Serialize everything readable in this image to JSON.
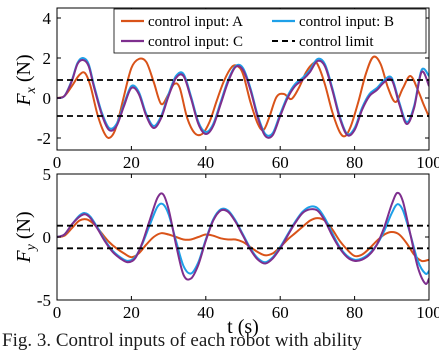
{
  "chart_data": [
    {
      "type": "line",
      "ylabel_main": "F",
      "ylabel_sub": "x",
      "ylabel_unit": " (N)",
      "xlim": [
        0,
        100
      ],
      "ylim": [
        -2.6,
        4.5
      ],
      "xticks": [
        0,
        20,
        40,
        60,
        80,
        100
      ],
      "yticks": [
        -2,
        0,
        2,
        4
      ],
      "grid": false,
      "legend_position": "top",
      "series": [
        {
          "name": "control input: A",
          "color": "#d95319",
          "style": "solid",
          "x": [
            0,
            2,
            4,
            6,
            7.5,
            9,
            11,
            13,
            14.5,
            16,
            18,
            20,
            22,
            24,
            26,
            28,
            30,
            31.5,
            33,
            35,
            37,
            39,
            41,
            43,
            45,
            47,
            48.5,
            50,
            52,
            54,
            55.5,
            57,
            59,
            61,
            63,
            65,
            67,
            69,
            70,
            72,
            74,
            76,
            77.5,
            79,
            81,
            83,
            85,
            87,
            89,
            91,
            93,
            95,
            97,
            98.5,
            100
          ],
          "y": [
            0,
            0.1,
            0.6,
            1.15,
            1.25,
            0.6,
            -0.9,
            -1.85,
            -1.95,
            -1.4,
            0.1,
            1.5,
            1.95,
            1.8,
            0.8,
            -0.3,
            0.2,
            0.7,
            0.5,
            -1.0,
            -1.75,
            -1.8,
            -1.2,
            -0.1,
            0.9,
            1.55,
            1.6,
            1.2,
            -0.2,
            -1.3,
            -1.6,
            -1.0,
            0.05,
            0.2,
            -0.05,
            0.5,
            1.3,
            1.75,
            1.7,
            0.7,
            -0.7,
            -1.7,
            -1.9,
            -1.4,
            -0.2,
            1.2,
            2.05,
            1.7,
            0.5,
            -0.2,
            0.5,
            1.1,
            0.4,
            -0.3,
            -0.95
          ]
        },
        {
          "name": "control input: B",
          "color": "#1ea0e8",
          "style": "solid",
          "x": [
            0,
            2,
            4,
            5.5,
            7,
            8.5,
            10,
            12,
            14,
            16,
            18,
            20,
            22,
            24,
            26,
            28,
            30,
            32,
            34,
            36,
            38,
            40,
            42,
            44,
            46,
            48,
            50,
            52,
            54,
            56,
            58,
            60,
            62,
            64,
            66,
            68,
            70,
            72,
            74,
            76,
            78,
            80,
            82,
            84,
            86,
            88,
            90,
            92,
            94,
            96,
            98,
            100
          ],
          "y": [
            0,
            0.1,
            0.9,
            1.75,
            2.0,
            1.7,
            0.6,
            -0.7,
            -1.5,
            -1.3,
            -0.3,
            0.6,
            0.3,
            -0.8,
            -1.4,
            -0.9,
            0.2,
            1.1,
            1.2,
            0.1,
            -1.2,
            -1.7,
            -1.3,
            -0.2,
            0.9,
            1.6,
            1.5,
            0.5,
            -0.9,
            -1.8,
            -1.75,
            -0.8,
            0.1,
            0.7,
            1.0,
            1.4,
            1.95,
            1.7,
            0.5,
            -0.9,
            -1.8,
            -1.5,
            -0.5,
            0.2,
            0.5,
            0.9,
            1.0,
            -0.2,
            -1.2,
            -0.4,
            1.4,
            1.1
          ]
        },
        {
          "name": "control input: C",
          "color": "#7e2f8e",
          "style": "solid",
          "x": [
            0,
            2,
            4,
            5.5,
            7,
            8.5,
            10,
            12,
            14,
            16,
            18,
            20,
            22,
            24,
            26,
            28,
            30,
            32,
            34,
            36,
            38,
            40,
            42,
            44,
            46,
            48,
            50,
            52,
            54,
            56,
            58,
            60,
            62,
            64,
            66,
            68,
            70,
            72,
            74,
            76,
            78,
            80,
            82,
            84,
            86,
            88,
            90,
            92,
            94,
            96,
            98,
            100
          ],
          "y": [
            0,
            0.1,
            0.85,
            1.7,
            1.9,
            1.6,
            0.5,
            -0.8,
            -1.6,
            -1.4,
            -0.4,
            0.5,
            0.2,
            -0.9,
            -1.5,
            -1.0,
            0.1,
            1.0,
            1.1,
            0.0,
            -1.3,
            -1.8,
            -1.4,
            -0.3,
            0.8,
            1.55,
            1.4,
            0.4,
            -1.0,
            -1.9,
            -1.85,
            -0.9,
            0.0,
            0.6,
            0.9,
            1.3,
            1.85,
            1.6,
            0.4,
            -1.0,
            -1.85,
            -1.6,
            -0.6,
            0.1,
            0.4,
            0.8,
            0.9,
            -0.3,
            -1.3,
            -0.5,
            1.3,
            0.6
          ]
        },
        {
          "name": "control limit",
          "color": "#000000",
          "style": "dashed",
          "x": [
            0,
            100
          ],
          "y": [
            0.9,
            0.9
          ]
        },
        {
          "name": "",
          "color": "#000000",
          "style": "dashed",
          "x": [
            0,
            100
          ],
          "y": [
            -0.9,
            -0.9
          ]
        }
      ]
    },
    {
      "type": "line",
      "ylabel_main": "F",
      "ylabel_sub": "y",
      "ylabel_unit": " (N)",
      "xlabel": "t (s)",
      "xlim": [
        0,
        100
      ],
      "ylim": [
        -5,
        5
      ],
      "xticks": [
        0,
        20,
        40,
        60,
        80,
        100
      ],
      "yticks": [
        -5,
        0,
        5
      ],
      "grid": false,
      "series": [
        {
          "name": "control input: A",
          "color": "#d95319",
          "style": "solid",
          "x": [
            0,
            2,
            4,
            6,
            8,
            10,
            12,
            14,
            16,
            18,
            20,
            22,
            24,
            26,
            28,
            30,
            32,
            34,
            36,
            38,
            40,
            42,
            44,
            46,
            48,
            50,
            52,
            54,
            56,
            58,
            60,
            62,
            64,
            66,
            68,
            70,
            72,
            74,
            76,
            78,
            80,
            82,
            84,
            86,
            88,
            90,
            92,
            94,
            96,
            98,
            100
          ],
          "y": [
            0,
            0.1,
            0.7,
            1.3,
            1.4,
            1.0,
            0.3,
            -0.4,
            -0.9,
            -1.3,
            -1.6,
            -1.3,
            -0.6,
            0.0,
            0.3,
            0.2,
            0.0,
            -0.2,
            -0.2,
            0.0,
            0.2,
            0.1,
            -0.1,
            -0.2,
            -0.2,
            -0.4,
            -0.8,
            -1.2,
            -1.45,
            -1.3,
            -0.8,
            -0.2,
            0.3,
            0.8,
            1.3,
            1.5,
            1.3,
            0.6,
            -0.3,
            -1.0,
            -1.5,
            -1.4,
            -0.9,
            -0.3,
            0.2,
            0.4,
            0.2,
            -0.5,
            -1.4,
            -1.9,
            -1.8
          ]
        },
        {
          "name": "control input: B",
          "color": "#1ea0e8",
          "style": "solid",
          "x": [
            0,
            2,
            4,
            6,
            7.5,
            9,
            11,
            13,
            15,
            17,
            19,
            21,
            23,
            25,
            27,
            28.5,
            30,
            32,
            34,
            36,
            38,
            40,
            42,
            44,
            46,
            48,
            50,
            52,
            54,
            56,
            58,
            60,
            62,
            64,
            66,
            68,
            70,
            72,
            74,
            76,
            78,
            80,
            82,
            84,
            86,
            88,
            90,
            91.5,
            93,
            95,
            97,
            99,
            100
          ],
          "y": [
            0,
            0.2,
            1.0,
            1.7,
            1.9,
            1.6,
            0.7,
            -0.3,
            -1.1,
            -1.6,
            -1.9,
            -1.6,
            -0.5,
            1.0,
            2.4,
            2.6,
            1.8,
            -0.3,
            -2.3,
            -2.9,
            -2.0,
            -0.2,
            1.4,
            2.2,
            2.1,
            1.3,
            0.2,
            -0.9,
            -1.7,
            -2.0,
            -1.6,
            -0.8,
            0.2,
            1.2,
            2.0,
            2.4,
            2.3,
            1.5,
            0.3,
            -0.8,
            -1.5,
            -1.8,
            -1.7,
            -1.3,
            -0.6,
            0.5,
            1.9,
            2.6,
            2.1,
            0.2,
            -1.9,
            -2.9,
            -2.7
          ]
        },
        {
          "name": "control input: C",
          "color": "#7e2f8e",
          "style": "solid",
          "x": [
            0,
            2,
            4,
            6,
            7.5,
            9,
            11,
            13,
            15,
            17,
            19,
            21,
            23,
            25,
            27,
            28.5,
            30,
            32,
            34,
            36,
            38,
            40,
            42,
            44,
            46,
            48,
            50,
            52,
            54,
            56,
            58,
            60,
            62,
            64,
            66,
            68,
            70,
            72,
            74,
            76,
            78,
            80,
            82,
            84,
            86,
            88,
            90,
            91.5,
            93,
            95,
            97,
            99,
            100
          ],
          "y": [
            0,
            0.2,
            1.0,
            1.6,
            1.8,
            1.5,
            0.6,
            -0.4,
            -1.2,
            -1.7,
            -2.0,
            -1.7,
            -0.4,
            1.4,
            3.1,
            3.4,
            2.2,
            -0.6,
            -3.0,
            -3.3,
            -2.2,
            -0.3,
            1.3,
            2.1,
            2.0,
            1.2,
            0.1,
            -1.0,
            -1.8,
            -2.1,
            -1.7,
            -0.9,
            0.1,
            1.1,
            1.9,
            2.2,
            2.1,
            1.3,
            0.1,
            -0.9,
            -1.6,
            -1.9,
            -1.8,
            -1.4,
            -0.6,
            0.8,
            2.6,
            3.5,
            2.8,
            0.2,
            -2.4,
            -3.7,
            -3.3
          ]
        },
        {
          "name": "control limit",
          "color": "#000000",
          "style": "dashed",
          "x": [
            0,
            100
          ],
          "y": [
            0.9,
            0.9
          ]
        },
        {
          "name": "",
          "color": "#000000",
          "style": "dashed",
          "x": [
            0,
            100
          ],
          "y": [
            -0.9,
            -0.9
          ]
        }
      ]
    }
  ],
  "caption": "Fig. 3. Control inputs of each robot with ability"
}
